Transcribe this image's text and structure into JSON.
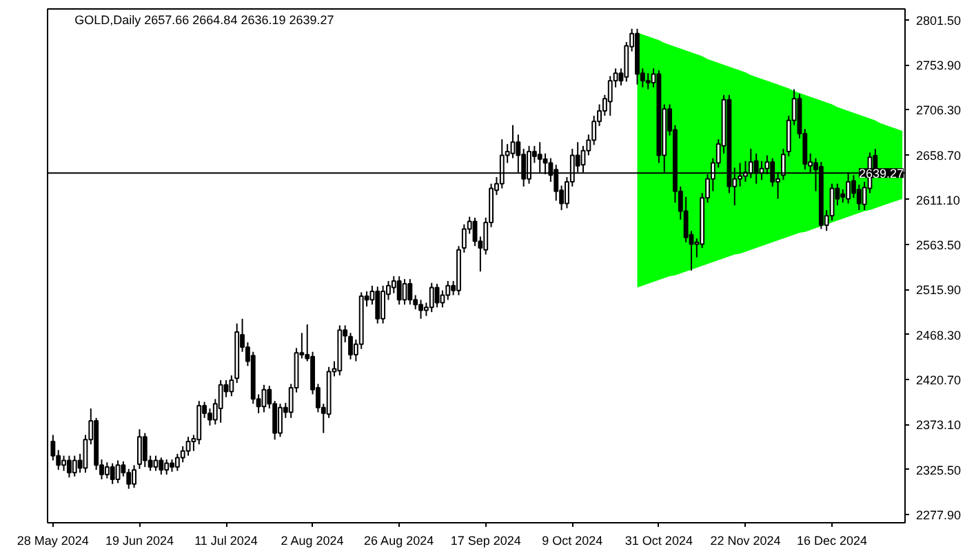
{
  "chart_data": {
    "type": "candlestick",
    "title": "GOLD,Daily  2657.66 2664.84 2636.19 2639.27",
    "categories": [
      "28 May 2024",
      null,
      null,
      null,
      null,
      null,
      null,
      null,
      null,
      null,
      null,
      null,
      null,
      null,
      null,
      null,
      "19 Jun 2024",
      null,
      null,
      null,
      null,
      null,
      null,
      null,
      null,
      null,
      null,
      null,
      null,
      null,
      null,
      null,
      "11 Jul 2024",
      null,
      null,
      null,
      null,
      null,
      null,
      null,
      null,
      null,
      null,
      null,
      null,
      null,
      null,
      null,
      "2 Aug 2024",
      null,
      null,
      null,
      null,
      null,
      null,
      null,
      null,
      null,
      null,
      null,
      null,
      null,
      null,
      null,
      "26 Aug 2024",
      null,
      null,
      null,
      null,
      null,
      null,
      null,
      null,
      null,
      null,
      null,
      null,
      null,
      null,
      null,
      "17 Sep 2024",
      null,
      null,
      null,
      null,
      null,
      null,
      null,
      null,
      null,
      null,
      null,
      null,
      null,
      null,
      null,
      "9 Oct 2024",
      null,
      null,
      null,
      null,
      null,
      null,
      null,
      null,
      null,
      null,
      null,
      null,
      null,
      null,
      null,
      "31 Oct 2024",
      null,
      null,
      null,
      null,
      null,
      null,
      null,
      null,
      null,
      null,
      null,
      null,
      null,
      null,
      null,
      "22 Nov 2024",
      null,
      null,
      null,
      null,
      null,
      null,
      null,
      null,
      null,
      null,
      null,
      null,
      null,
      null,
      null,
      "16 Dec 2024",
      null,
      null,
      null,
      null,
      null,
      null,
      null,
      null,
      null,
      null,
      null,
      null,
      null
    ],
    "ohlc": [
      [
        2355,
        2362,
        2335,
        2340
      ],
      [
        2340,
        2346,
        2325,
        2330
      ],
      [
        2330,
        2340,
        2324,
        2335
      ],
      [
        2335,
        2340,
        2317,
        2322
      ],
      [
        2322,
        2340,
        2318,
        2335
      ],
      [
        2335,
        2342,
        2322,
        2327
      ],
      [
        2327,
        2362,
        2322,
        2357
      ],
      [
        2357,
        2390,
        2352,
        2377
      ],
      [
        2377,
        2380,
        2325,
        2330
      ],
      [
        2330,
        2336,
        2315,
        2320
      ],
      [
        2320,
        2333,
        2316,
        2328
      ],
      [
        2328,
        2332,
        2310,
        2315
      ],
      [
        2315,
        2335,
        2311,
        2330
      ],
      [
        2330,
        2334,
        2318,
        2322
      ],
      [
        2322,
        2326,
        2305,
        2310
      ],
      [
        2310,
        2330,
        2306,
        2325
      ],
      [
        2331,
        2368,
        2326,
        2360
      ],
      [
        2360,
        2364,
        2328,
        2335
      ],
      [
        2335,
        2340,
        2324,
        2328
      ],
      [
        2328,
        2340,
        2324,
        2335
      ],
      [
        2335,
        2338,
        2320,
        2325
      ],
      [
        2325,
        2336,
        2320,
        2332
      ],
      [
        2332,
        2336,
        2323,
        2328
      ],
      [
        2328,
        2342,
        2324,
        2338
      ],
      [
        2338,
        2350,
        2333,
        2345
      ],
      [
        2345,
        2360,
        2340,
        2355
      ],
      [
        2355,
        2362,
        2345,
        2358
      ],
      [
        2357,
        2398,
        2352,
        2393
      ],
      [
        2393,
        2397,
        2380,
        2385
      ],
      [
        2385,
        2390,
        2372,
        2378
      ],
      [
        2378,
        2400,
        2373,
        2395
      ],
      [
        2390,
        2420,
        2375,
        2415
      ],
      [
        2415,
        2420,
        2402,
        2408
      ],
      [
        2408,
        2425,
        2403,
        2420
      ],
      [
        2422,
        2480,
        2417,
        2471
      ],
      [
        2468,
        2485,
        2450,
        2455
      ],
      [
        2455,
        2460,
        2435,
        2440
      ],
      [
        2446,
        2450,
        2395,
        2400
      ],
      [
        2400,
        2405,
        2385,
        2392
      ],
      [
        2392,
        2415,
        2386,
        2410
      ],
      [
        2410,
        2414,
        2390,
        2395
      ],
      [
        2395,
        2398,
        2357,
        2364
      ],
      [
        2364,
        2395,
        2360,
        2391
      ],
      [
        2391,
        2396,
        2380,
        2386
      ],
      [
        2386,
        2416,
        2380,
        2412
      ],
      [
        2412,
        2454,
        2407,
        2449
      ],
      [
        2449,
        2470,
        2443,
        2447
      ],
      [
        2447,
        2479,
        2440,
        2443
      ],
      [
        2445,
        2450,
        2405,
        2410
      ],
      [
        2412,
        2416,
        2386,
        2391
      ],
      [
        2391,
        2395,
        2364,
        2385
      ],
      [
        2384,
        2434,
        2380,
        2429
      ],
      [
        2429,
        2440,
        2424,
        2432
      ],
      [
        2430,
        2478,
        2425,
        2473
      ],
      [
        2473,
        2478,
        2460,
        2467
      ],
      [
        2466,
        2470,
        2442,
        2447
      ],
      [
        2447,
        2463,
        2440,
        2458
      ],
      [
        2458,
        2513,
        2453,
        2509
      ],
      [
        2509,
        2514,
        2498,
        2505
      ],
      [
        2505,
        2520,
        2500,
        2514
      ],
      [
        2514,
        2519,
        2480,
        2485
      ],
      [
        2485,
        2520,
        2480,
        2514
      ],
      [
        2511,
        2525,
        2505,
        2520
      ],
      [
        2518,
        2530,
        2512,
        2525
      ],
      [
        2525,
        2530,
        2500,
        2505
      ],
      [
        2505,
        2527,
        2500,
        2522
      ],
      [
        2522,
        2527,
        2500,
        2505
      ],
      [
        2505,
        2510,
        2495,
        2500
      ],
      [
        2500,
        2505,
        2485,
        2494
      ],
      [
        2494,
        2502,
        2488,
        2497
      ],
      [
        2497,
        2523,
        2492,
        2518
      ],
      [
        2518,
        2522,
        2497,
        2502
      ],
      [
        2502,
        2515,
        2497,
        2510
      ],
      [
        2510,
        2525,
        2505,
        2520
      ],
      [
        2520,
        2525,
        2510,
        2515
      ],
      [
        2515,
        2562,
        2510,
        2558
      ],
      [
        2560,
        2585,
        2555,
        2580
      ],
      [
        2580,
        2593,
        2575,
        2588
      ],
      [
        2588,
        2592,
        2562,
        2567
      ],
      [
        2567,
        2572,
        2535,
        2560
      ],
      [
        2558,
        2592,
        2553,
        2587
      ],
      [
        2587,
        2628,
        2582,
        2623
      ],
      [
        2621,
        2635,
        2616,
        2628
      ],
      [
        2628,
        2675,
        2623,
        2658
      ],
      [
        2658,
        2670,
        2650,
        2662
      ],
      [
        2660,
        2690,
        2655,
        2672
      ],
      [
        2672,
        2680,
        2640,
        2658
      ],
      [
        2659,
        2665,
        2625,
        2633
      ],
      [
        2633,
        2668,
        2628,
        2662
      ],
      [
        2662,
        2668,
        2650,
        2657
      ],
      [
        2659,
        2672,
        2640,
        2654
      ],
      [
        2654,
        2660,
        2638,
        2650
      ],
      [
        2650,
        2655,
        2630,
        2637
      ],
      [
        2643,
        2648,
        2610,
        2620
      ],
      [
        2621,
        2626,
        2600,
        2607
      ],
      [
        2607,
        2635,
        2602,
        2630
      ],
      [
        2630,
        2665,
        2625,
        2658
      ],
      [
        2658,
        2672,
        2640,
        2647
      ],
      [
        2648,
        2668,
        2640,
        2663
      ],
      [
        2663,
        2680,
        2658,
        2674
      ],
      [
        2674,
        2700,
        2669,
        2694
      ],
      [
        2694,
        2712,
        2689,
        2705
      ],
      [
        2705,
        2722,
        2700,
        2718
      ],
      [
        2715,
        2742,
        2700,
        2737
      ],
      [
        2737,
        2750,
        2730,
        2745
      ],
      [
        2745,
        2750,
        2732,
        2737
      ],
      [
        2741,
        2778,
        2736,
        2774
      ],
      [
        2773,
        2792,
        2768,
        2787
      ],
      [
        2787,
        2792,
        2733,
        2744
      ],
      [
        2745,
        2750,
        2730,
        2737
      ],
      [
        2737,
        2745,
        2728,
        2735
      ],
      [
        2735,
        2750,
        2730,
        2744
      ],
      [
        2744,
        2748,
        2650,
        2658
      ],
      [
        2658,
        2712,
        2640,
        2707
      ],
      [
        2707,
        2712,
        2679,
        2684
      ],
      [
        2685,
        2690,
        2608,
        2620
      ],
      [
        2620,
        2625,
        2590,
        2599
      ],
      [
        2599,
        2614,
        2566,
        2571
      ],
      [
        2574,
        2578,
        2536,
        2564
      ],
      [
        2564,
        2570,
        2550,
        2566
      ],
      [
        2564,
        2618,
        2560,
        2613
      ],
      [
        2613,
        2638,
        2608,
        2633
      ],
      [
        2633,
        2655,
        2620,
        2650
      ],
      [
        2650,
        2675,
        2645,
        2670
      ],
      [
        2668,
        2722,
        2660,
        2717
      ],
      [
        2717,
        2722,
        2618,
        2625
      ],
      [
        2625,
        2645,
        2605,
        2633
      ],
      [
        2633,
        2650,
        2625,
        2636
      ],
      [
        2636,
        2652,
        2630,
        2640
      ],
      [
        2639,
        2665,
        2634,
        2651
      ],
      [
        2652,
        2660,
        2628,
        2639
      ],
      [
        2639,
        2652,
        2632,
        2644
      ],
      [
        2644,
        2658,
        2638,
        2651
      ],
      [
        2651,
        2655,
        2625,
        2630
      ],
      [
        2630,
        2640,
        2612,
        2633
      ],
      [
        2637,
        2665,
        2632,
        2659
      ],
      [
        2662,
        2700,
        2657,
        2695
      ],
      [
        2695,
        2728,
        2690,
        2718
      ],
      [
        2718,
        2723,
        2676,
        2681
      ],
      [
        2681,
        2686,
        2643,
        2649
      ],
      [
        2647,
        2660,
        2640,
        2651
      ],
      [
        2650,
        2655,
        2620,
        2643
      ],
      [
        2646,
        2651,
        2580,
        2584
      ],
      [
        2584,
        2600,
        2578,
        2594
      ],
      [
        2594,
        2628,
        2589,
        2623
      ],
      [
        2623,
        2628,
        2605,
        2612
      ],
      [
        2617,
        2622,
        2608,
        2614
      ],
      [
        2612,
        2640,
        2607,
        2630
      ],
      [
        2631,
        2637,
        2613,
        2618
      ],
      [
        2622,
        2627,
        2600,
        2607
      ],
      [
        2606,
        2630,
        2600,
        2624
      ],
      [
        2623,
        2661,
        2618,
        2656
      ],
      [
        2657.66,
        2664.84,
        2636.19,
        2639.27
      ],
      null,
      null,
      null,
      null,
      null
    ],
    "series": [
      {
        "type": "area",
        "color": "#00ff00",
        "values": [
          null,
          null,
          null,
          null,
          null,
          null,
          null,
          null,
          null,
          null,
          null,
          null,
          null,
          null,
          null,
          null,
          null,
          null,
          null,
          null,
          null,
          null,
          null,
          null,
          null,
          null,
          null,
          null,
          null,
          null,
          null,
          null,
          null,
          null,
          null,
          null,
          null,
          null,
          null,
          null,
          null,
          null,
          null,
          null,
          null,
          null,
          null,
          null,
          null,
          null,
          null,
          null,
          null,
          null,
          null,
          null,
          null,
          null,
          null,
          null,
          null,
          null,
          null,
          null,
          null,
          null,
          null,
          null,
          null,
          null,
          null,
          null,
          null,
          null,
          null,
          null,
          null,
          null,
          null,
          null,
          null,
          null,
          null,
          null,
          null,
          null,
          null,
          null,
          null,
          null,
          null,
          null,
          null,
          null,
          null,
          null,
          null,
          null,
          null,
          null,
          null,
          null,
          null,
          null,
          null,
          null,
          null,
          null,
          null,
          null,
          null,
          null,
          null,
          null,
          null,
          null,
          null,
          null,
          null,
          null,
          null,
          null,
          null,
          null,
          null,
          null,
          null,
          null,
          null,
          null,
          null,
          null,
          null,
          null,
          null,
          null,
          null,
          null,
          null,
          null,
          null,
          null,
          null,
          null,
          null,
          null,
          null,
          null,
          null,
          null,
          null,
          null,
          null,
          null,
          null,
          null,
          null,
          null
        ],
        "upper": [
          null,
          null,
          null,
          null,
          null,
          null,
          null,
          null,
          null,
          null,
          null,
          null,
          null,
          null,
          null,
          null,
          null,
          null,
          null,
          null,
          null,
          null,
          null,
          null,
          null,
          null,
          null,
          null,
          null,
          null,
          null,
          null,
          null,
          null,
          null,
          null,
          null,
          null,
          null,
          null,
          null,
          null,
          null,
          null,
          null,
          null,
          null,
          null,
          null,
          null,
          null,
          null,
          null,
          null,
          null,
          null,
          null,
          null,
          null,
          null,
          null,
          null,
          null,
          null,
          null,
          null,
          null,
          null,
          null,
          null,
          null,
          null,
          null,
          null,
          null,
          null,
          null,
          null,
          null,
          null,
          null,
          null,
          null,
          null,
          null,
          null,
          null,
          null,
          null,
          null,
          null,
          null,
          null,
          null,
          null,
          null,
          null,
          null,
          null,
          null,
          null,
          null,
          null,
          null,
          null,
          null,
          null,
          null,
          2788,
          2786,
          2784,
          2782,
          2780,
          2777,
          2775,
          2773,
          2771,
          2769,
          2767,
          2765,
          2763,
          2760,
          2758,
          2756,
          2754,
          2752,
          2750,
          2748,
          2746,
          2743,
          2741,
          2739,
          2737,
          2735,
          2733,
          2731,
          2729,
          2726,
          2724,
          2722,
          2720,
          2718,
          2716,
          2714,
          2712,
          2709,
          2707,
          2705,
          2703,
          2701,
          2699,
          2697,
          2695,
          2692,
          2690,
          2688,
          2686,
          2684
        ],
        "lower": [
          null,
          null,
          null,
          null,
          null,
          null,
          null,
          null,
          null,
          null,
          null,
          null,
          null,
          null,
          null,
          null,
          null,
          null,
          null,
          null,
          null,
          null,
          null,
          null,
          null,
          null,
          null,
          null,
          null,
          null,
          null,
          null,
          null,
          null,
          null,
          null,
          null,
          null,
          null,
          null,
          null,
          null,
          null,
          null,
          null,
          null,
          null,
          null,
          null,
          null,
          null,
          null,
          null,
          null,
          null,
          null,
          null,
          null,
          null,
          null,
          null,
          null,
          null,
          null,
          null,
          null,
          null,
          null,
          null,
          null,
          null,
          null,
          null,
          null,
          null,
          null,
          null,
          null,
          null,
          null,
          null,
          null,
          null,
          null,
          null,
          null,
          null,
          null,
          null,
          null,
          null,
          null,
          null,
          null,
          null,
          null,
          null,
          null,
          null,
          null,
          null,
          null,
          null,
          null,
          null,
          null,
          null,
          null,
          2518,
          2520,
          2522,
          2524,
          2526,
          2528,
          2530,
          2531,
          2533,
          2535,
          2537,
          2539,
          2541,
          2543,
          2545,
          2547,
          2549,
          2551,
          2553,
          2554,
          2556,
          2558,
          2560,
          2562,
          2564,
          2566,
          2568,
          2570,
          2572,
          2574,
          2576,
          2577,
          2579,
          2581,
          2583,
          2585,
          2587,
          2589,
          2591,
          2593,
          2595,
          2597,
          2599,
          2600,
          2602,
          2604,
          2606,
          2608,
          2610,
          2612
        ]
      }
    ],
    "ylim": [
      2269,
      2813
    ],
    "yticks": [
      {
        "value": 2277.9,
        "label": "2277.90"
      },
      {
        "value": 2325.5,
        "label": "2325.50"
      },
      {
        "value": 2373.1,
        "label": "2373.10"
      },
      {
        "value": 2420.7,
        "label": "2420.70"
      },
      {
        "value": 2468.3,
        "label": "2468.30"
      },
      {
        "value": 2515.9,
        "label": "2515.90"
      },
      {
        "value": 2563.5,
        "label": "2563.50"
      },
      {
        "value": 2611.1,
        "label": "2611.10"
      },
      {
        "value": 2658.7,
        "label": "2658.70"
      },
      {
        "value": 2706.3,
        "label": "2706.30"
      },
      {
        "value": 2753.9,
        "label": "2753.90"
      },
      {
        "value": 2801.5,
        "label": "2801.50"
      }
    ],
    "ref_lines": [
      {
        "axis": "y",
        "value": 2639.27,
        "label": "2639.27",
        "color": "#000000"
      }
    ],
    "grid": false
  }
}
